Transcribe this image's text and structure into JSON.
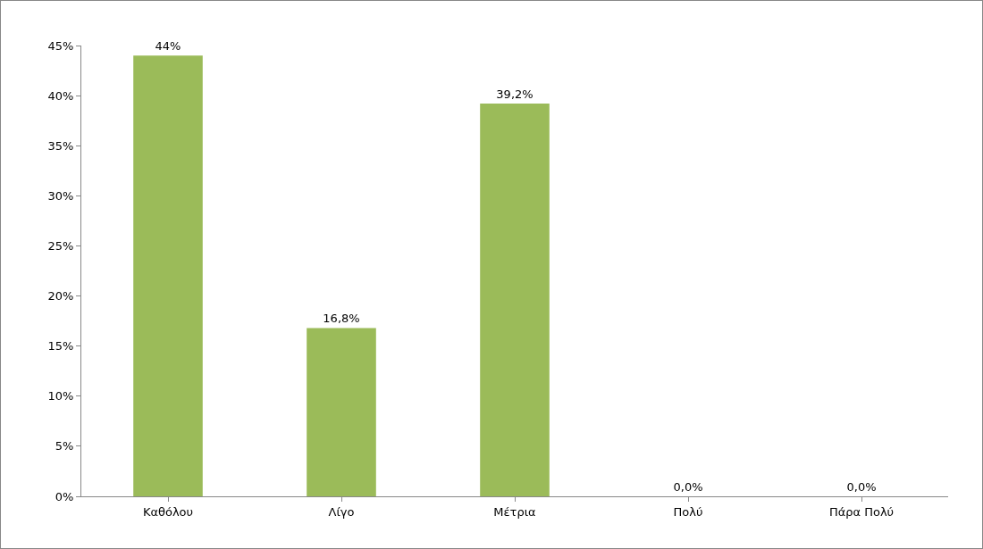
{
  "chart_data": {
    "type": "bar",
    "categories": [
      "Καθόλου",
      "Λίγο",
      "Μέτρια",
      "Πολύ",
      "Πάρα Πολύ"
    ],
    "values": [
      44,
      16.8,
      39.2,
      0,
      0
    ],
    "value_labels": [
      "44%",
      "16,8%",
      "39,2%",
      "0,0%",
      "0,0%"
    ],
    "color": "#9bbb59",
    "ylim": [
      0,
      45
    ],
    "yticks": [
      {
        "value": 0,
        "label": "0%"
      },
      {
        "value": 5,
        "label": "5%"
      },
      {
        "value": 10,
        "label": "10%"
      },
      {
        "value": 15,
        "label": "15%"
      },
      {
        "value": 20,
        "label": "20%"
      },
      {
        "value": 25,
        "label": "25%"
      },
      {
        "value": 30,
        "label": "30%"
      },
      {
        "value": 35,
        "label": "35%"
      },
      {
        "value": 40,
        "label": "40%"
      },
      {
        "value": 45,
        "label": "45%"
      }
    ],
    "grid": false
  }
}
